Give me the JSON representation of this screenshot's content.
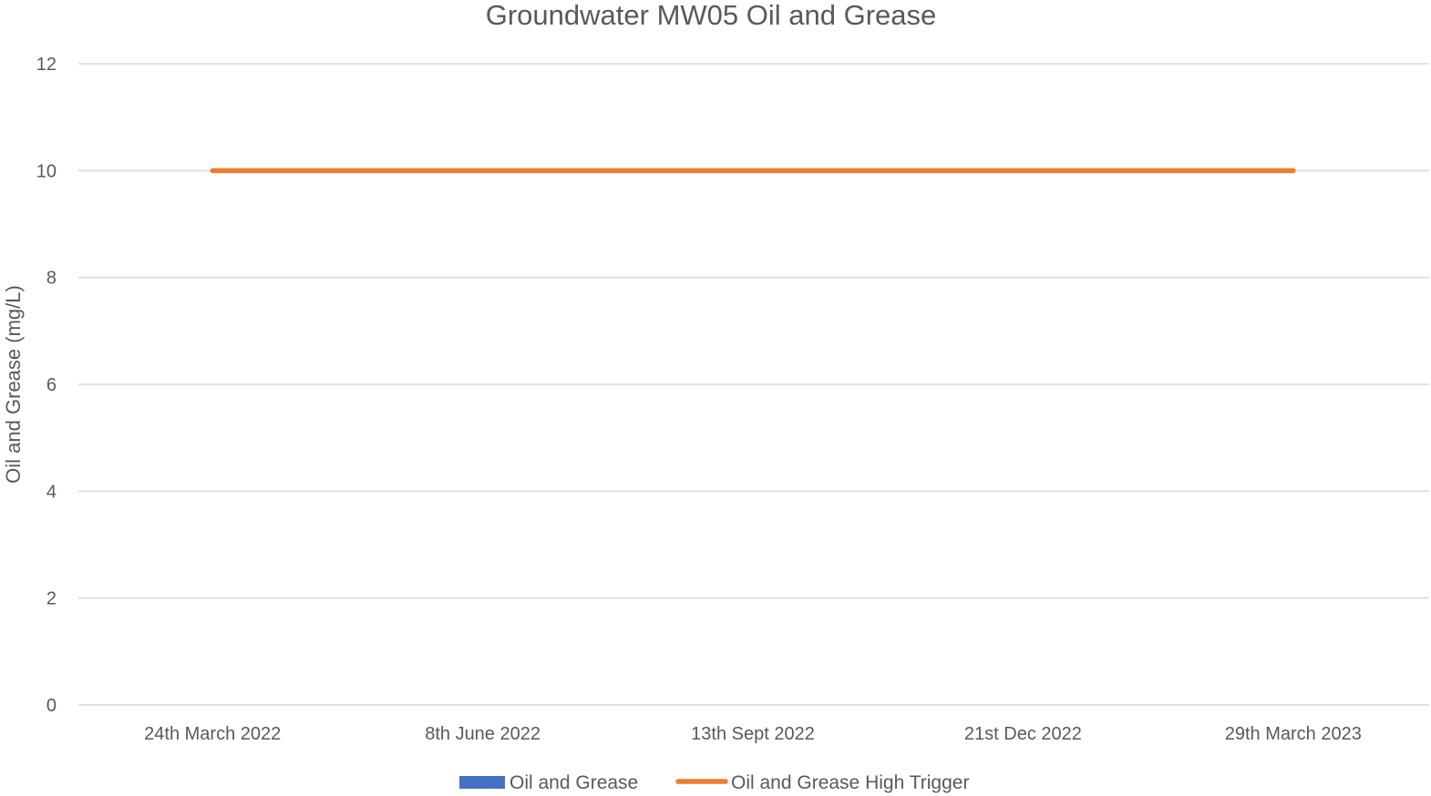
{
  "chart_data": {
    "type": "bar",
    "title": "Groundwater MW05 Oil and Grease",
    "xlabel": "",
    "ylabel": "Oil and Grease (mg/L)",
    "categories": [
      "24th March 2022",
      "8th June 2022",
      "13th Sept 2022",
      "21st Dec 2022",
      "29th March 2023"
    ],
    "ylim": [
      0,
      12
    ],
    "yticks": [
      0,
      2,
      4,
      6,
      8,
      10,
      12
    ],
    "grid": true,
    "legend_position": "bottom",
    "series": [
      {
        "name": "Oil and Grease",
        "type": "bar",
        "color": "#4472c4",
        "values": [
          null,
          null,
          null,
          null,
          null
        ]
      },
      {
        "name": "Oil and Grease High Trigger",
        "type": "line",
        "color": "#ed7d31",
        "values": [
          10,
          10,
          10,
          10,
          10
        ]
      }
    ]
  }
}
